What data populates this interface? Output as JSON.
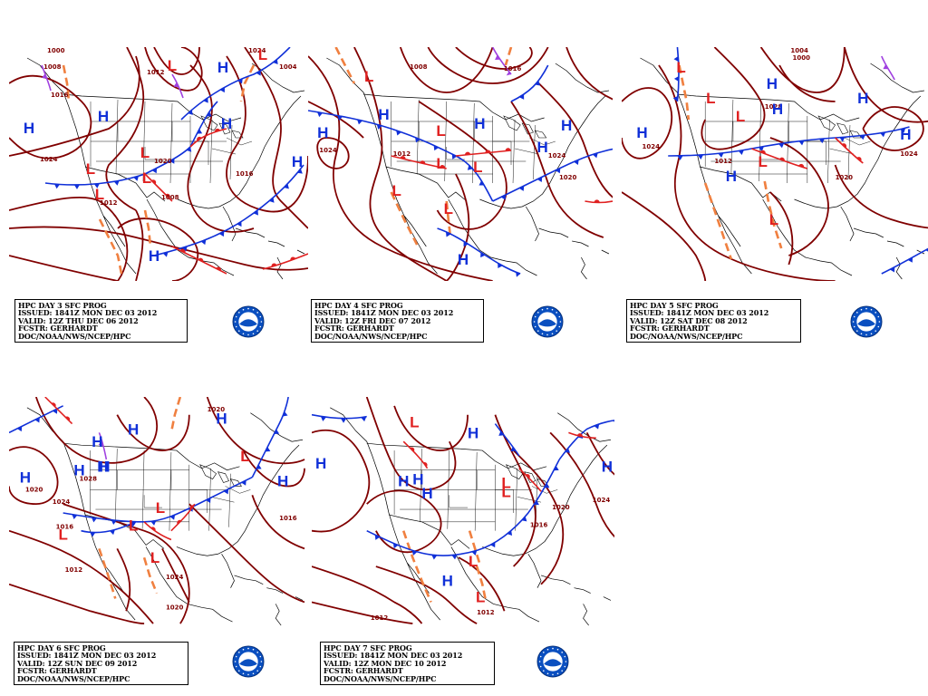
{
  "colors": {
    "isobar": "#800000",
    "high": "#1030d8",
    "low": "#e02020",
    "cold_front": "#1030d8",
    "warm_front": "#e02020",
    "trough": "#f08040",
    "occluded": "#a040e0",
    "map_outline": "#000000"
  },
  "panels": [
    {
      "id": "day3",
      "info": [
        "HPC DAY 3 SFC PROG",
        "ISSUED: 1841Z MON DEC 03 2012",
        "VALID: 12Z THU DEC 06 2012",
        "FCSTR: GERHARDT",
        "DOC/NOAA/NWS/NCEP/HPC"
      ],
      "highs": [
        "H",
        "H",
        "H",
        "H",
        "H",
        "H"
      ],
      "lows": [
        "L",
        "L",
        "L",
        "L",
        "L",
        "L"
      ],
      "isobar_labels": [
        "1000",
        "1008",
        "1016",
        "1024",
        "1012",
        "1024",
        "1020",
        "1016",
        "1012",
        "1008",
        "1004"
      ]
    },
    {
      "id": "day4",
      "info": [
        "HPC DAY 4 SFC PROG",
        "ISSUED: 1841Z MON DEC 03 2012",
        "VALID: 12Z FRI DEC 07 2012",
        "FCSTR: GERHARDT",
        "DOC/NOAA/NWS/NCEP/HPC"
      ],
      "highs": [
        "H",
        "H",
        "H",
        "H",
        "H",
        "H"
      ],
      "lows": [
        "L",
        "L",
        "L",
        "L",
        "L",
        "L"
      ],
      "isobar_labels": [
        "1024",
        "1024",
        "1020",
        "1012",
        "1008",
        "1016"
      ]
    },
    {
      "id": "day5",
      "info": [
        "HPC DAY 5 SFC PROG",
        "ISSUED: 1841Z MON DEC 03 2012",
        "VALID: 12Z SAT DEC 08 2012",
        "FCSTR: GERHARDT",
        "DOC/NOAA/NWS/NCEP/HPC"
      ],
      "highs": [
        "H",
        "H",
        "H",
        "H",
        "H",
        "H"
      ],
      "lows": [
        "L",
        "L",
        "L",
        "L",
        "L"
      ],
      "isobar_labels": [
        "1004",
        "1000",
        "1024",
        "1012",
        "1028",
        "1024",
        "1020"
      ]
    },
    {
      "id": "day6",
      "info": [
        "HPC DAY 6 SFC PROG",
        "ISSUED: 1841Z MON DEC 03 2012",
        "VALID: 12Z SUN DEC 09 2012",
        "FCSTR: GERHARDT",
        "DOC/NOAA/NWS/NCEP/HPC"
      ],
      "highs": [
        "H",
        "H",
        "H",
        "H",
        "H",
        "H",
        "H",
        "H"
      ],
      "lows": [
        "L",
        "L",
        "L",
        "L",
        "L"
      ],
      "isobar_labels": [
        "1020",
        "1028",
        "1024",
        "1020",
        "1016",
        "1016",
        "1012",
        "1024",
        "1020"
      ]
    },
    {
      "id": "day7",
      "info": [
        "HPC DAY 7 SFC PROG",
        "ISSUED: 1841Z MON DEC 03 2012",
        "VALID: 12Z MON DEC 10 2012",
        "FCSTR: GERHARDT",
        "DOC/NOAA/NWS/NCEP/HPC"
      ],
      "highs": [
        "H",
        "H",
        "H",
        "H",
        "H",
        "H",
        "H"
      ],
      "lows": [
        "L",
        "L",
        "L",
        "L",
        "L"
      ],
      "isobar_labels": [
        "1020",
        "1024",
        "1016",
        "1012",
        "1012"
      ]
    }
  ]
}
